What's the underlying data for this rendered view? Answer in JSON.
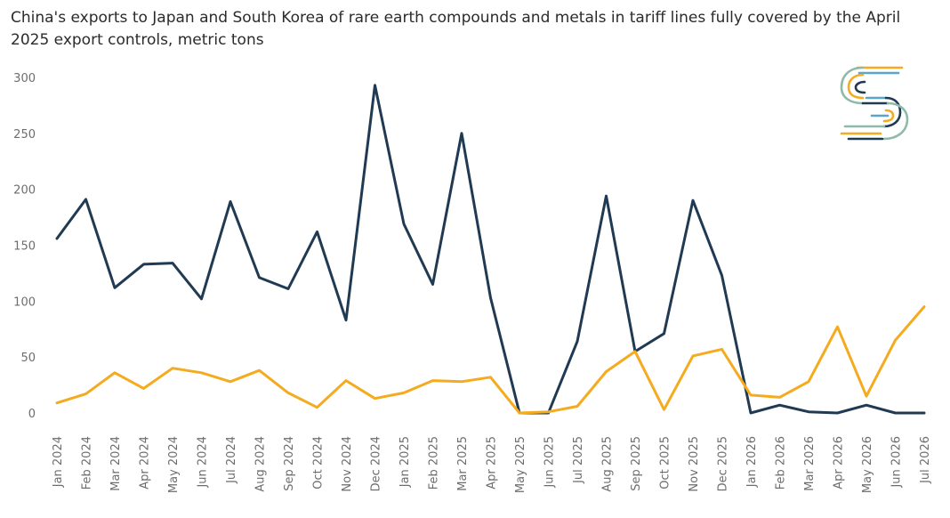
{
  "chart_data": {
    "type": "line",
    "title": "China's exports to Japan and South Korea of rare earth compounds and metals in tariff lines fully covered by the April 2025 export controls, metric tons",
    "x": [
      "Jan 2024",
      "Feb 2024",
      "Mar 2024",
      "Apr 2024",
      "May 2024",
      "Jun 2024",
      "Jul 2024",
      "Aug 2024",
      "Sep 2024",
      "Oct 2024",
      "Nov 2024",
      "Dec 2024",
      "Jan 2025",
      "Feb 2025",
      "Mar 2025",
      "Apr 2025",
      "May 2025",
      "Jun 2025",
      "Jul 2025",
      "Aug 2025",
      "Sep 2025",
      "Oct 2025",
      "Nov 2025",
      "Dec 2025",
      "Jan 2026",
      "Feb 2026",
      "Mar 2026",
      "Apr 2026",
      "May 2026",
      "Jun 2026",
      "Jul 2026"
    ],
    "yticks": [
      "300",
      "250",
      "200",
      "150",
      "100",
      "50",
      "0"
    ],
    "ylim": [
      0,
      300
    ],
    "grid": false,
    "series": [
      {
        "color": "#1f3a52",
        "values": [
          156,
          191,
          112,
          133,
          134,
          102,
          189,
          121,
          111,
          162,
          83,
          293,
          169,
          115,
          250,
          103,
          0,
          0,
          64,
          194,
          55,
          71,
          190,
          123,
          0,
          7,
          1,
          0,
          7,
          0,
          0
        ]
      },
      {
        "color": "#f5ab1f",
        "values": [
          9,
          17,
          36,
          22,
          40,
          36,
          28,
          38,
          18,
          5,
          29,
          13,
          18,
          29,
          28,
          32,
          0,
          1,
          6,
          37,
          55,
          3,
          51,
          57,
          16,
          14,
          28,
          77,
          15,
          65,
          95
        ]
      }
    ]
  },
  "logo": {
    "icon": "stylized-s-logo-icon",
    "colors": [
      "#f5ab1f",
      "#1f3a52",
      "#5aa6c8",
      "#8fb9a8"
    ]
  }
}
